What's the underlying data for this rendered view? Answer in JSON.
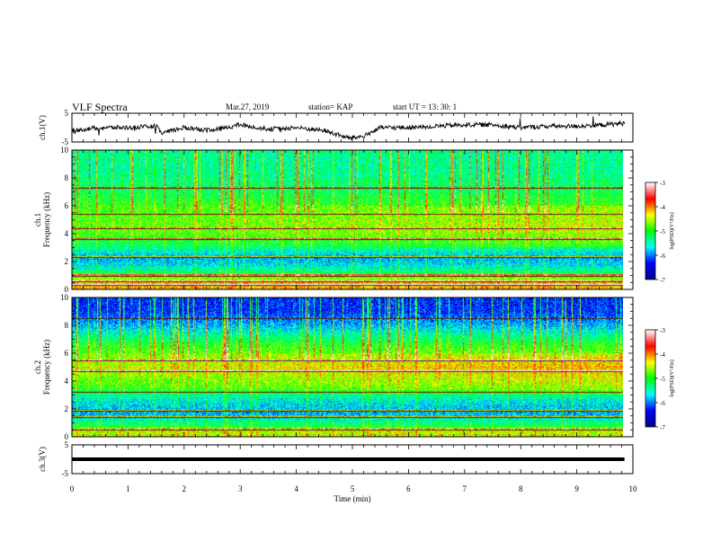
{
  "header": {
    "title": "VLF Spectra",
    "date": "Mar.27, 2019",
    "station": "station= KAP",
    "start_time": "start  UT =   13: 30: 1"
  },
  "colorbar": {
    "label": "log(PSD)(V²/Hz)",
    "range": [
      -7,
      -3
    ],
    "ticks": [
      "-3",
      "-4",
      "-5",
      "-6",
      "-7"
    ],
    "colors": [
      "#00008f",
      "#0000ff",
      "#00ffff",
      "#00ff00",
      "#ffff00",
      "#ff0000",
      "#ffffff"
    ]
  },
  "chart_data": [
    {
      "type": "line",
      "name": "ch.1 waveform",
      "ylabel": "ch.1(V)",
      "ylim": [
        -5,
        5
      ],
      "yticks": [
        "5",
        "-5"
      ],
      "x": [
        0,
        0.5,
        1.0,
        1.5,
        1.6,
        2.0,
        2.5,
        3.0,
        3.5,
        4.0,
        4.5,
        4.9,
        5.0,
        5.2,
        5.5,
        6.0,
        6.5,
        7.0,
        7.5,
        8.0,
        8.5,
        9.0,
        9.5,
        9.85
      ],
      "values": [
        -1,
        0,
        0,
        0.5,
        -2,
        0,
        -1,
        1,
        -0.5,
        0,
        -1,
        -3.5,
        -3.5,
        -3,
        0,
        0,
        0.5,
        1,
        1,
        0,
        0.5,
        0.5,
        1,
        1.5
      ]
    },
    {
      "type": "heatmap",
      "name": "ch.1 spectrogram",
      "ylabel": "ch.1\nFrequency  (kHz)",
      "xlim": [
        0,
        10
      ],
      "ylim": [
        0,
        10
      ],
      "yticks": [
        "0",
        "2",
        "4",
        "6",
        "8",
        "10"
      ],
      "zlim": [
        -7,
        -3
      ],
      "freq_bands_khz": [
        [
          0,
          0.8
        ],
        [
          0.8,
          1.5
        ],
        [
          1.5,
          3
        ],
        [
          3,
          5.5
        ],
        [
          5.5,
          7
        ],
        [
          7,
          10
        ]
      ],
      "log_psd_by_band": [
        -4.2,
        -5.2,
        -5.9,
        -4.8,
        -5.0,
        -5.4
      ],
      "line_freqs_khz": [
        0.3,
        0.6,
        1.0,
        2.3,
        3.6,
        4.4,
        5.4,
        7.3
      ]
    },
    {
      "type": "heatmap",
      "name": "ch.2 spectrogram",
      "ylabel": "ch.2\nFrequency  (kHz)",
      "xlim": [
        0,
        10
      ],
      "ylim": [
        0,
        10
      ],
      "yticks": [
        "0",
        "2",
        "4",
        "6",
        "8",
        "10"
      ],
      "zlim": [
        -7,
        -3
      ],
      "freq_bands_khz": [
        [
          0,
          0.8
        ],
        [
          0.8,
          2.5
        ],
        [
          2.5,
          3.5
        ],
        [
          3.5,
          6.5
        ],
        [
          6.5,
          8
        ],
        [
          8,
          10
        ]
      ],
      "log_psd_by_band": [
        -4.5,
        -5.9,
        -5.4,
        -4.5,
        -5.4,
        -6.3
      ],
      "line_freqs_khz": [
        0.5,
        1.4,
        1.9,
        3.2,
        4.7,
        5.5,
        8.5
      ]
    },
    {
      "type": "line",
      "name": "ch.3 waveform",
      "ylabel": "ch.3(V)",
      "ylim": [
        -5,
        5
      ],
      "yticks": [
        "5",
        "-5"
      ],
      "x": [
        0,
        9.85
      ],
      "values": [
        0,
        0
      ]
    }
  ],
  "x_axis": {
    "label": "Time  (min)",
    "ticks": [
      "0",
      "1",
      "2",
      "3",
      "4",
      "5",
      "6",
      "7",
      "8",
      "9",
      "10"
    ],
    "range": [
      0,
      10
    ]
  }
}
